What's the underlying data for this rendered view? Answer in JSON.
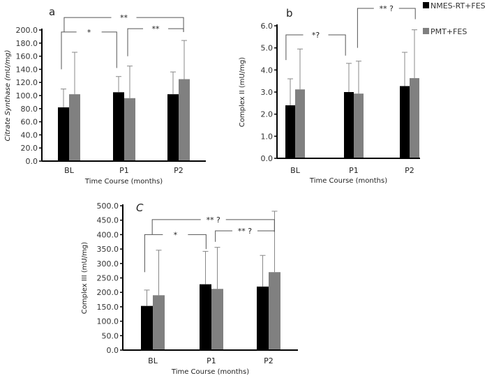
{
  "legend": [
    {
      "name": "NMES-RT+FES",
      "color": "#000000"
    },
    {
      "name": "PMT+FES",
      "color": "#808080"
    }
  ],
  "chart_data": [
    {
      "type": "bar",
      "panel": "a",
      "categories": [
        "BL",
        "P1",
        "P2"
      ],
      "xlabel": "Time Course (months)",
      "ylabel": "Citrate Synthase (mU/mg)",
      "ylim": [
        0,
        200
      ],
      "yticks": [
        "0.0",
        "20.0",
        "40.0",
        "60.0",
        "80.0",
        "100.0",
        "120.0",
        "140.0",
        "160.0",
        "180.0",
        "200.0"
      ],
      "series": [
        {
          "name": "NMES-RT+FES",
          "values": [
            82,
            105,
            102
          ],
          "error": [
            28,
            24,
            34
          ]
        },
        {
          "name": "PMT+FES",
          "values": [
            102,
            96,
            125
          ],
          "error": [
            64,
            49,
            59
          ]
        }
      ],
      "significance": [
        {
          "label": "*",
          "from": -0.14,
          "to": 0.87,
          "y": 197,
          "left_drop": 140,
          "right_drop": 142
        },
        {
          "label": "**",
          "from": -0.09,
          "to": 2.09,
          "y": 219,
          "left_drop": 197,
          "right_drop": 197
        },
        {
          "label": "**",
          "from": 1.07,
          "to": 2.09,
          "y": 202,
          "left_drop": 160,
          "right_drop": 197
        }
      ]
    },
    {
      "type": "bar",
      "panel": "b",
      "categories": [
        "BL",
        "P1",
        "P2"
      ],
      "xlabel": "Time Course (months)",
      "ylabel": "Complex II (mU/mg)",
      "ylim": [
        0,
        6
      ],
      "yticks": [
        "0.0",
        "1.0",
        "2.0",
        "3.0",
        "4.0",
        "5.0",
        "6.0"
      ],
      "series": [
        {
          "name": "NMES-RT+FES",
          "values": [
            2.4,
            3.0,
            3.27
          ],
          "error": [
            1.2,
            1.3,
            1.53
          ]
        },
        {
          "name": "PMT+FES",
          "values": [
            3.12,
            2.93,
            3.63
          ],
          "error": [
            1.83,
            1.47,
            2.19
          ]
        }
      ],
      "significance": [
        {
          "label": "*?",
          "from": -0.16,
          "to": 0.88,
          "y": 5.59,
          "left_drop": 4.45,
          "right_drop": 4.65
        },
        {
          "label": "** ?",
          "from": 1.09,
          "to": 2.1,
          "y": 6.79,
          "left_drop": 5.0,
          "right_drop": 6.3
        }
      ]
    },
    {
      "type": "bar",
      "panel": "C",
      "categories": [
        "BL",
        "P1",
        "P2"
      ],
      "xlabel": "Time Course (months)",
      "ylabel": "Complex III (mU/mg)",
      "ylim": [
        0,
        500
      ],
      "yticks": [
        "0.0",
        "50.0",
        "100.0",
        "150.0",
        "200.0",
        "250.0",
        "300.0",
        "350.0",
        "400.0",
        "450.0",
        "500.0"
      ],
      "series": [
        {
          "name": "NMES-RT+FES",
          "values": [
            153,
            228,
            220
          ],
          "error": [
            55,
            114,
            108
          ]
        },
        {
          "name": "PMT+FES",
          "values": [
            190,
            212,
            270
          ],
          "error": [
            156,
            144,
            211
          ]
        }
      ],
      "significance": [
        {
          "label": "*",
          "from": -0.14,
          "to": 0.92,
          "y": 400,
          "left_drop": 270,
          "right_drop": 350
        },
        {
          "label": "** ?",
          "from": -0.01,
          "to": 2.1,
          "y": 452,
          "left_drop": 400,
          "right_drop": 410
        },
        {
          "label": "** ?",
          "from": 1.08,
          "to": 2.1,
          "y": 413,
          "left_drop": 375,
          "right_drop": 410
        }
      ]
    }
  ]
}
